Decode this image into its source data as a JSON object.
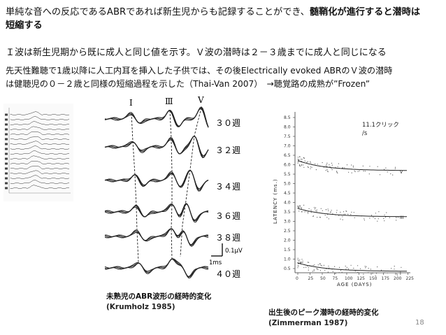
{
  "paragraph1": {
    "line1_plain": "単純な音への反応であるABRであれば新生児からも記録することができ、",
    "line1_bold": "髄鞘化が進行すると潜時は",
    "line2_bold": "短縮する"
  },
  "paragraph2": "Ｉ波は新生児期から既に成人と同じ値を示す。Ｖ波の潜時は２－３歳までに成人と同じになる",
  "paragraph3": {
    "line1": "先天性難聴で1歳以降に人工内耳を挿入した子供では、その後Electrically evoked ABRのＶ波の潜時",
    "line2": "は健聴児の０－２歳と同様の短縮過程を示した（Thai-Van 2007）　→聴覚路の成熟が”Frozen”"
  },
  "figure_abr": {
    "peaks": [
      "Ⅰ",
      "Ⅲ",
      "Ⅴ"
    ],
    "weeks": [
      "３０週",
      "３２週",
      "３４週",
      "３６週",
      "３８週",
      "４０週"
    ],
    "scale_voltage": "0.1μV",
    "scale_time": "1ms",
    "caption": "未熟児のABR波形の経時的変化",
    "reference": "(Krumholz 1985)"
  },
  "figure_latency": {
    "annotation": "11.1クリック/s",
    "annotation_line1": "11.1クリック",
    "annotation_line2": "/s",
    "ylabel": "LATENCY (ms.)",
    "xlabel": "AGE (DAYS)",
    "yticks": [
      "8.5",
      "8.0",
      "7.5",
      "7.0",
      "6.5",
      "6.0",
      "5.5",
      "5.0",
      "4.5",
      "4.0",
      "3.5",
      "3.0",
      "2.5",
      "2.0",
      "1.5",
      "1.0",
      "0.5"
    ],
    "xticks": [
      "0",
      "25",
      "50",
      "75",
      "100",
      "125",
      "150",
      "175",
      "200",
      "225"
    ],
    "wave_labels": [
      "V",
      "III",
      "I"
    ],
    "caption": "出生後のピーク潜時の経時的変化",
    "reference": "(Zimmerman 1987)"
  },
  "page_number": "18"
}
